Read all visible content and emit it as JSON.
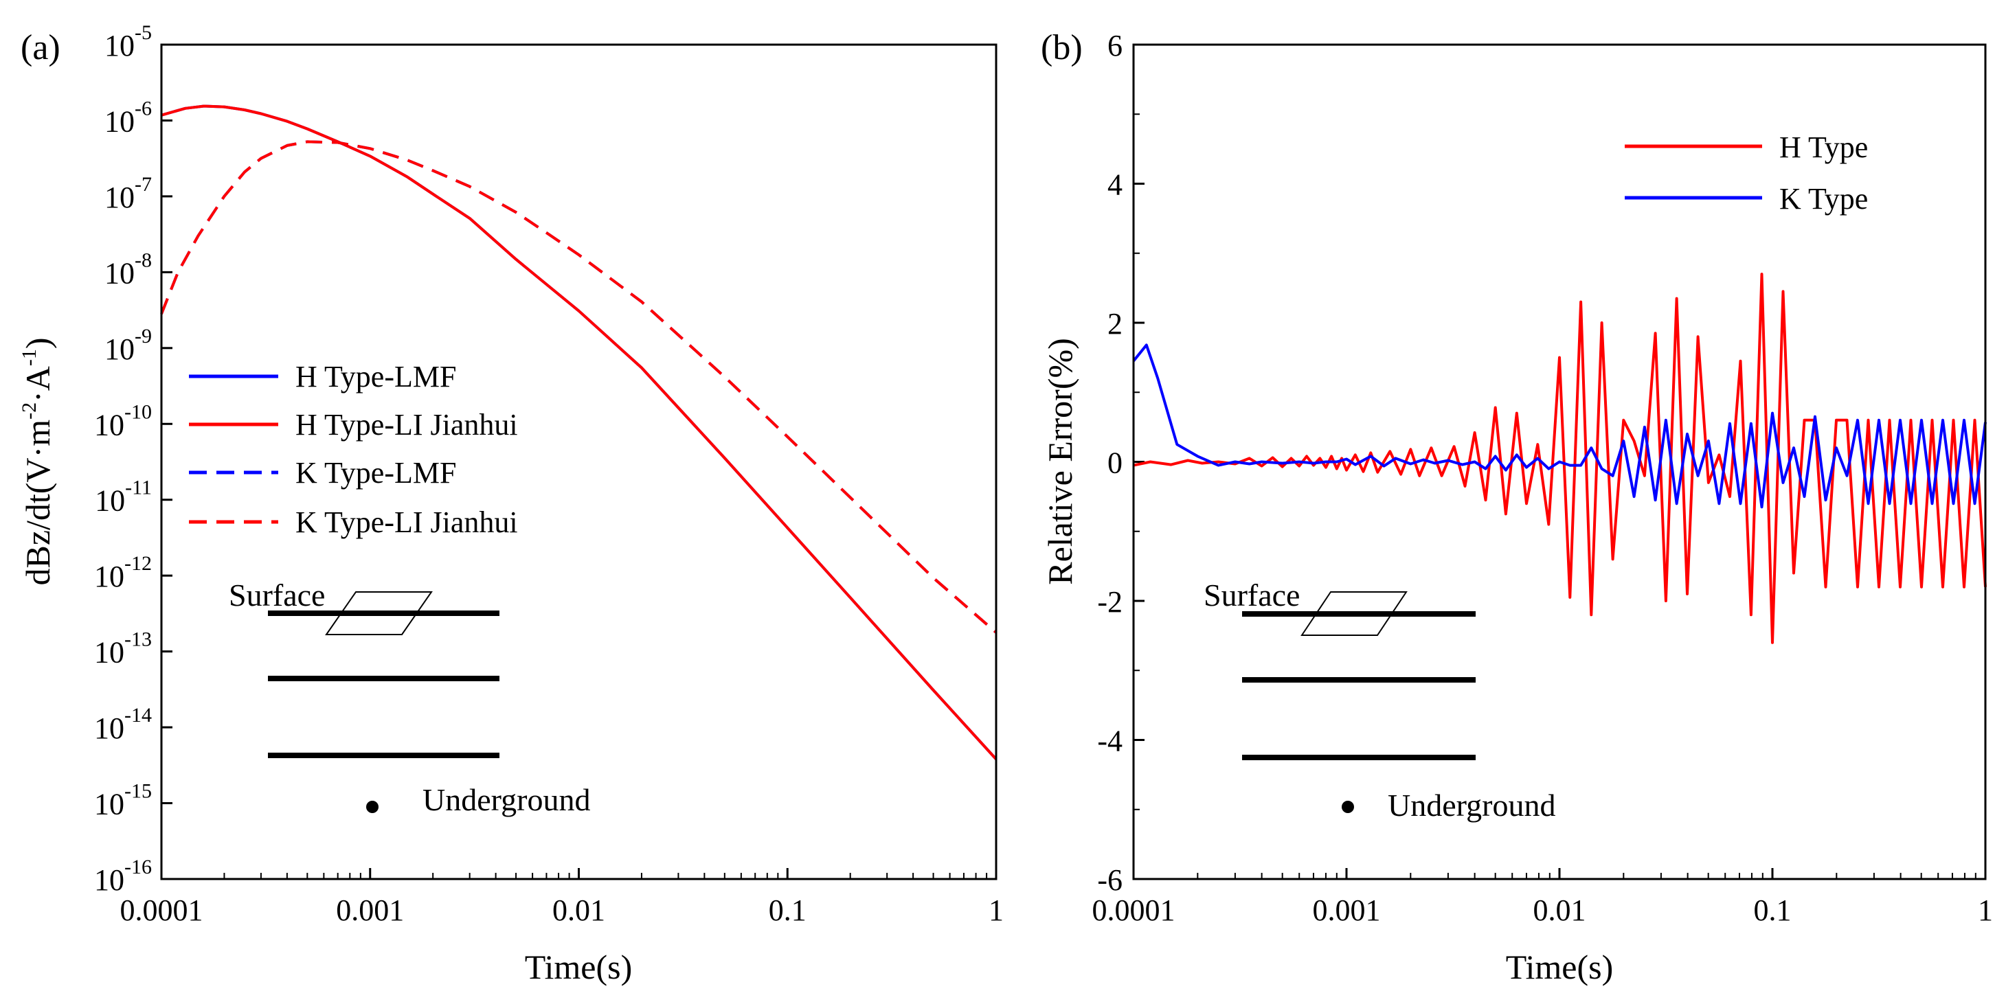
{
  "chart_data": [
    {
      "type": "line",
      "panel_label": "(a)",
      "xlabel": "Time(s)",
      "ylabel_parts": [
        "dBz/dt(V·m",
        "-2",
        "·A",
        "-1",
        ")"
      ],
      "x_scale": "log",
      "y_scale": "log",
      "xlim": [
        0.0001,
        1
      ],
      "ylim_exp": [
        -16,
        -5
      ],
      "x_tick_labels": [
        "0.0001",
        "0.001",
        "0.01",
        "0.1",
        "1"
      ],
      "y_tick_exponents": [
        "-16",
        "-15",
        "-14",
        "-13",
        "-12",
        "-11",
        "-10",
        "-9",
        "-8",
        "-7",
        "-6",
        "-5"
      ],
      "legend_position": "left-middle",
      "series": [
        {
          "name": "H Type-LMF",
          "color": "#0000ff",
          "dash": "solid",
          "x": [
            0.0001,
            0.00013,
            0.00016,
            0.0002,
            0.00025,
            0.0003,
            0.0004,
            0.0005,
            0.0007,
            0.001,
            0.0015,
            0.002,
            0.003,
            0.005,
            0.007,
            0.01,
            0.02,
            0.05,
            0.1,
            0.2,
            0.5,
            1
          ],
          "log_y": [
            -5.93,
            -5.84,
            -5.81,
            -5.82,
            -5.86,
            -5.91,
            -6.01,
            -6.11,
            -6.28,
            -6.47,
            -6.74,
            -6.97,
            -7.29,
            -7.83,
            -8.16,
            -8.51,
            -9.26,
            -10.45,
            -11.37,
            -12.29,
            -13.51,
            -14.42
          ]
        },
        {
          "name": "H Type-LI Jianhui",
          "color": "#ff0000",
          "dash": "solid",
          "x": [
            0.0001,
            0.00013,
            0.00016,
            0.0002,
            0.00025,
            0.0003,
            0.0004,
            0.0005,
            0.0007,
            0.001,
            0.0015,
            0.002,
            0.003,
            0.005,
            0.007,
            0.01,
            0.02,
            0.05,
            0.1,
            0.2,
            0.5,
            1
          ],
          "log_y": [
            -5.93,
            -5.84,
            -5.81,
            -5.82,
            -5.86,
            -5.91,
            -6.01,
            -6.11,
            -6.28,
            -6.47,
            -6.74,
            -6.97,
            -7.29,
            -7.83,
            -8.16,
            -8.51,
            -9.26,
            -10.45,
            -11.37,
            -12.29,
            -13.51,
            -14.42
          ]
        },
        {
          "name": "K Type-LMF",
          "color": "#0000ff",
          "dash": "dashed",
          "x": [
            0.0001,
            0.00012,
            0.00015,
            0.0002,
            0.00025,
            0.0003,
            0.0004,
            0.0005,
            0.0007,
            0.001,
            0.0015,
            0.002,
            0.003,
            0.005,
            0.007,
            0.01,
            0.02,
            0.05,
            0.1,
            0.2,
            0.5,
            1
          ],
          "log_y": [
            -8.55,
            -8.0,
            -7.52,
            -7.0,
            -6.68,
            -6.5,
            -6.33,
            -6.28,
            -6.29,
            -6.37,
            -6.52,
            -6.66,
            -6.87,
            -7.21,
            -7.48,
            -7.77,
            -8.39,
            -9.38,
            -10.17,
            -10.97,
            -12.03,
            -12.75
          ]
        },
        {
          "name": "K Type-LI Jianhui",
          "color": "#ff0000",
          "dash": "dashed",
          "x": [
            0.0001,
            0.00012,
            0.00015,
            0.0002,
            0.00025,
            0.0003,
            0.0004,
            0.0005,
            0.0007,
            0.001,
            0.0015,
            0.002,
            0.003,
            0.005,
            0.007,
            0.01,
            0.02,
            0.05,
            0.1,
            0.2,
            0.5,
            1
          ],
          "log_y": [
            -8.55,
            -8.0,
            -7.52,
            -7.0,
            -6.68,
            -6.5,
            -6.33,
            -6.28,
            -6.29,
            -6.37,
            -6.52,
            -6.66,
            -6.87,
            -7.21,
            -7.48,
            -7.77,
            -8.39,
            -9.38,
            -10.17,
            -10.97,
            -12.03,
            -12.75
          ]
        }
      ],
      "diagram": {
        "surface_label": "Surface",
        "underground_label": "Underground"
      }
    },
    {
      "type": "line",
      "panel_label": "(b)",
      "xlabel": "Time(s)",
      "ylabel": "Relative Error(%)",
      "x_scale": "log",
      "y_scale": "linear",
      "xlim": [
        0.0001,
        1
      ],
      "ylim": [
        -6,
        6
      ],
      "x_tick_labels": [
        "0.0001",
        "0.001",
        "0.01",
        "0.1",
        "1"
      ],
      "y_tick_labels": [
        "-6",
        "-4",
        "-2",
        "0",
        "2",
        "4",
        "6"
      ],
      "legend_position": "top-right",
      "series": [
        {
          "name": "H Type",
          "color": "#ff0000",
          "dash": "solid",
          "x": [
            0.0001,
            0.00012,
            0.00015,
            0.00018,
            0.00021,
            0.00025,
            0.0003,
            0.00035,
            0.0004,
            0.00045,
            0.0005,
            0.00055,
            0.0006,
            0.00065,
            0.0007,
            0.00075,
            0.0008,
            0.00085,
            0.0009,
            0.00095,
            0.001,
            0.0011,
            0.0012,
            0.0013,
            0.0014,
            0.0016,
            0.0018,
            0.002,
            0.0022,
            0.0025,
            0.0028,
            0.0032,
            0.0036,
            0.004,
            0.0045,
            0.005,
            0.0056,
            0.0063,
            0.007,
            0.0079,
            0.0089,
            0.01,
            0.0112,
            0.0126,
            0.0141,
            0.0158,
            0.0178,
            0.02,
            0.0224,
            0.0251,
            0.0282,
            0.0316,
            0.0355,
            0.0398,
            0.0447,
            0.0501,
            0.0562,
            0.0631,
            0.0708,
            0.0794,
            0.0891,
            0.1,
            0.1122,
            0.1259,
            0.1413,
            0.1585,
            0.1778,
            0.1995,
            0.2239,
            0.2512,
            0.2818,
            0.3162,
            0.3548,
            0.3981,
            0.4467,
            0.5012,
            0.5623,
            0.631,
            0.7079,
            0.7943,
            0.8913,
            1
          ],
          "y": [
            -0.05,
            0.0,
            -0.04,
            0.02,
            -0.02,
            0.0,
            -0.03,
            0.05,
            -0.06,
            0.06,
            -0.07,
            0.05,
            -0.06,
            0.08,
            -0.05,
            0.05,
            -0.08,
            0.08,
            -0.1,
            0.05,
            -0.12,
            0.1,
            -0.14,
            0.13,
            -0.15,
            0.15,
            -0.18,
            0.18,
            -0.2,
            0.2,
            -0.2,
            0.22,
            -0.35,
            0.42,
            -0.55,
            0.78,
            -0.75,
            0.7,
            -0.6,
            0.25,
            -0.9,
            1.5,
            -1.95,
            2.3,
            -2.2,
            2.0,
            -1.4,
            0.6,
            0.3,
            -0.2,
            1.85,
            -2.0,
            2.35,
            -1.9,
            1.8,
            -0.3,
            0.1,
            -0.5,
            1.45,
            -2.2,
            2.7,
            -2.6,
            2.45,
            -1.6,
            0.6,
            0.6,
            -1.8,
            0.6,
            0.6,
            -1.8,
            0.6,
            -1.8,
            0.6,
            -1.8,
            0.6,
            -1.8,
            0.6,
            -1.8,
            0.6,
            -1.8,
            0.6,
            -1.8
          ]
        },
        {
          "name": "K Type",
          "color": "#0000ff",
          "dash": "solid",
          "x": [
            0.0001,
            0.000115,
            0.00013,
            0.00016,
            0.0002,
            0.00025,
            0.0003,
            0.00035,
            0.0004,
            0.0005,
            0.0006,
            0.0007,
            0.0008,
            0.0009,
            0.001,
            0.0011,
            0.0013,
            0.0015,
            0.0017,
            0.002,
            0.0023,
            0.0026,
            0.003,
            0.0035,
            0.004,
            0.0045,
            0.005,
            0.0056,
            0.0063,
            0.007,
            0.0079,
            0.0089,
            0.01,
            0.0112,
            0.0126,
            0.0141,
            0.0158,
            0.0178,
            0.02,
            0.0224,
            0.0251,
            0.0282,
            0.0316,
            0.0355,
            0.0398,
            0.0447,
            0.0501,
            0.0562,
            0.0631,
            0.0708,
            0.0794,
            0.0891,
            0.1,
            0.1122,
            0.1259,
            0.1413,
            0.1585,
            0.1778,
            0.1995,
            0.2239,
            0.2512,
            0.2818,
            0.3162,
            0.3548,
            0.3981,
            0.4467,
            0.5012,
            0.5623,
            0.631,
            0.7079,
            0.7943,
            0.8913,
            1
          ],
          "y": [
            1.45,
            1.68,
            1.2,
            0.25,
            0.08,
            -0.05,
            0.0,
            -0.03,
            0.0,
            -0.02,
            0.0,
            -0.02,
            0.0,
            0.0,
            0.04,
            -0.04,
            0.08,
            -0.06,
            0.05,
            -0.03,
            0.03,
            -0.02,
            0.02,
            -0.04,
            0.0,
            -0.1,
            0.08,
            -0.12,
            0.1,
            -0.08,
            0.05,
            -0.1,
            0.0,
            -0.05,
            -0.05,
            0.2,
            -0.1,
            -0.2,
            0.3,
            -0.5,
            0.5,
            -0.55,
            0.6,
            -0.6,
            0.4,
            -0.2,
            0.3,
            -0.6,
            0.55,
            -0.6,
            0.55,
            -0.65,
            0.7,
            -0.3,
            0.2,
            -0.5,
            0.65,
            -0.55,
            0.2,
            -0.2,
            0.6,
            -0.6,
            0.6,
            -0.6,
            0.6,
            -0.6,
            0.6,
            -0.6,
            0.6,
            -0.6,
            0.6,
            -0.6,
            0.57
          ]
        }
      ],
      "diagram": {
        "surface_label": "Surface",
        "underground_label": "Underground"
      }
    }
  ]
}
